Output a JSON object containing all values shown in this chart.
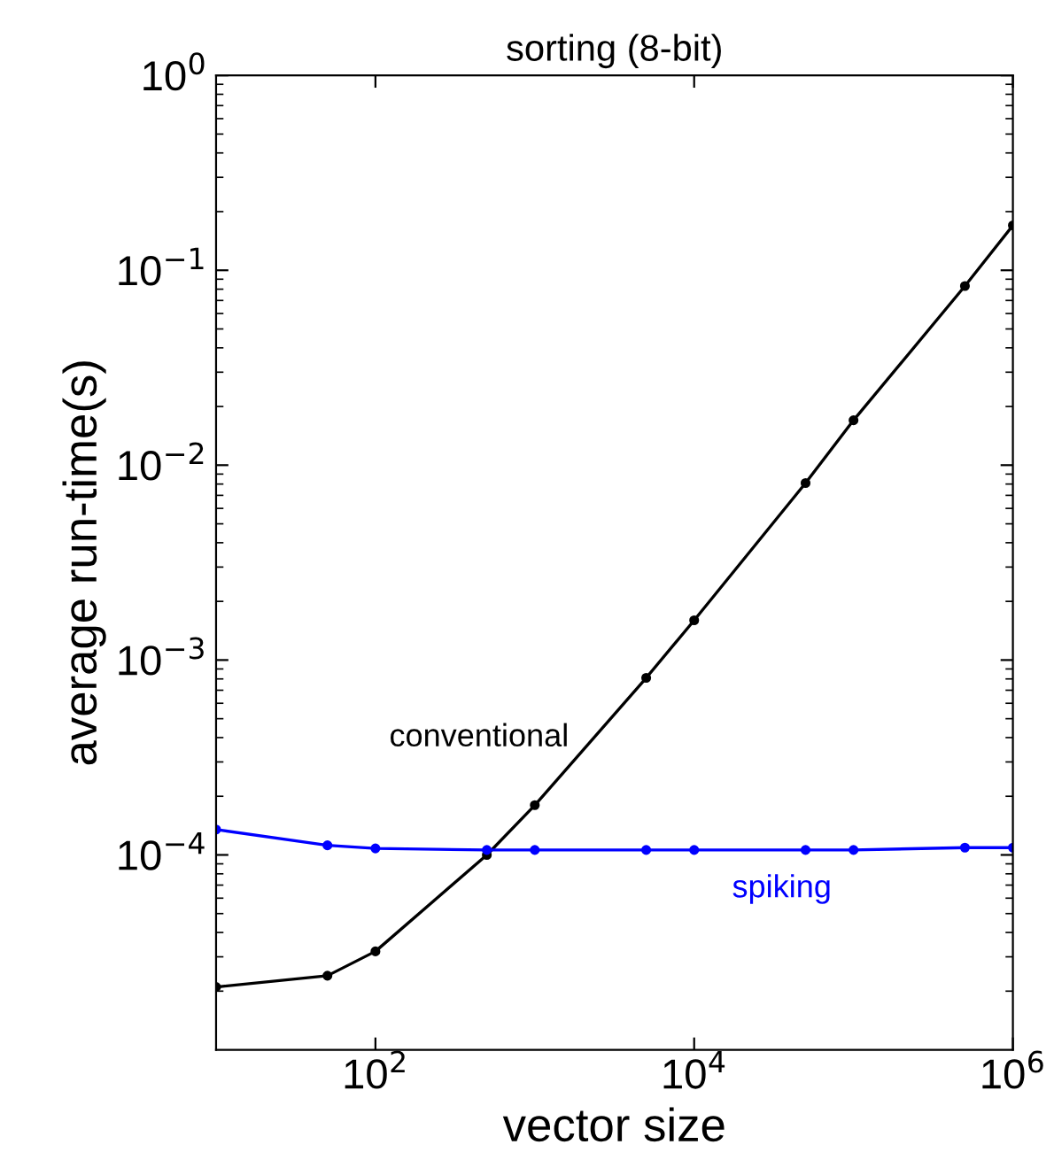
{
  "chart_data": {
    "type": "line",
    "title": "sorting (8-bit)",
    "xlabel": "vector size",
    "ylabel": "average run-time(s)",
    "log": "xy",
    "marker": "circle",
    "line_style": "solid",
    "grid": false,
    "legend": false,
    "xlim": [
      10,
      1000000
    ],
    "ylim": [
      1e-05,
      1
    ],
    "xticks": [
      {
        "value": 100,
        "label": "10$^{2}$"
      },
      {
        "value": 10000,
        "label": "10$^{4}$"
      },
      {
        "value": 1000000,
        "label": "10$^{6}$"
      }
    ],
    "yticks": [
      {
        "value": 0.0001,
        "label": "10$^{−4}$"
      },
      {
        "value": 0.001,
        "label": "10$^{−3}$"
      },
      {
        "value": 0.01,
        "label": "10$^{−2}$"
      },
      {
        "value": 0.1,
        "label": "10$^{−1}$"
      },
      {
        "value": 1,
        "label": "10$^{0}$"
      }
    ],
    "series": [
      {
        "name": "conventional",
        "color": "#000000",
        "x": [
          10,
          50,
          100,
          500,
          1000,
          5000,
          10000,
          50000,
          100000,
          500000,
          1000000
        ],
        "values": [
          2.1e-05,
          2.4e-05,
          3.2e-05,
          0.0001,
          0.00018,
          0.00081,
          0.0016,
          0.0081,
          0.017,
          0.083,
          0.17
        ]
      },
      {
        "name": "spiking",
        "color": "#0000ff",
        "x": [
          10,
          50,
          100,
          500,
          1000,
          5000,
          10000,
          50000,
          100000,
          500000,
          1000000
        ],
        "values": [
          0.000135,
          0.000112,
          0.000108,
          0.000106,
          0.000106,
          0.000106,
          0.000106,
          0.000106,
          0.000106,
          0.000109,
          0.000109
        ]
      }
    ]
  }
}
